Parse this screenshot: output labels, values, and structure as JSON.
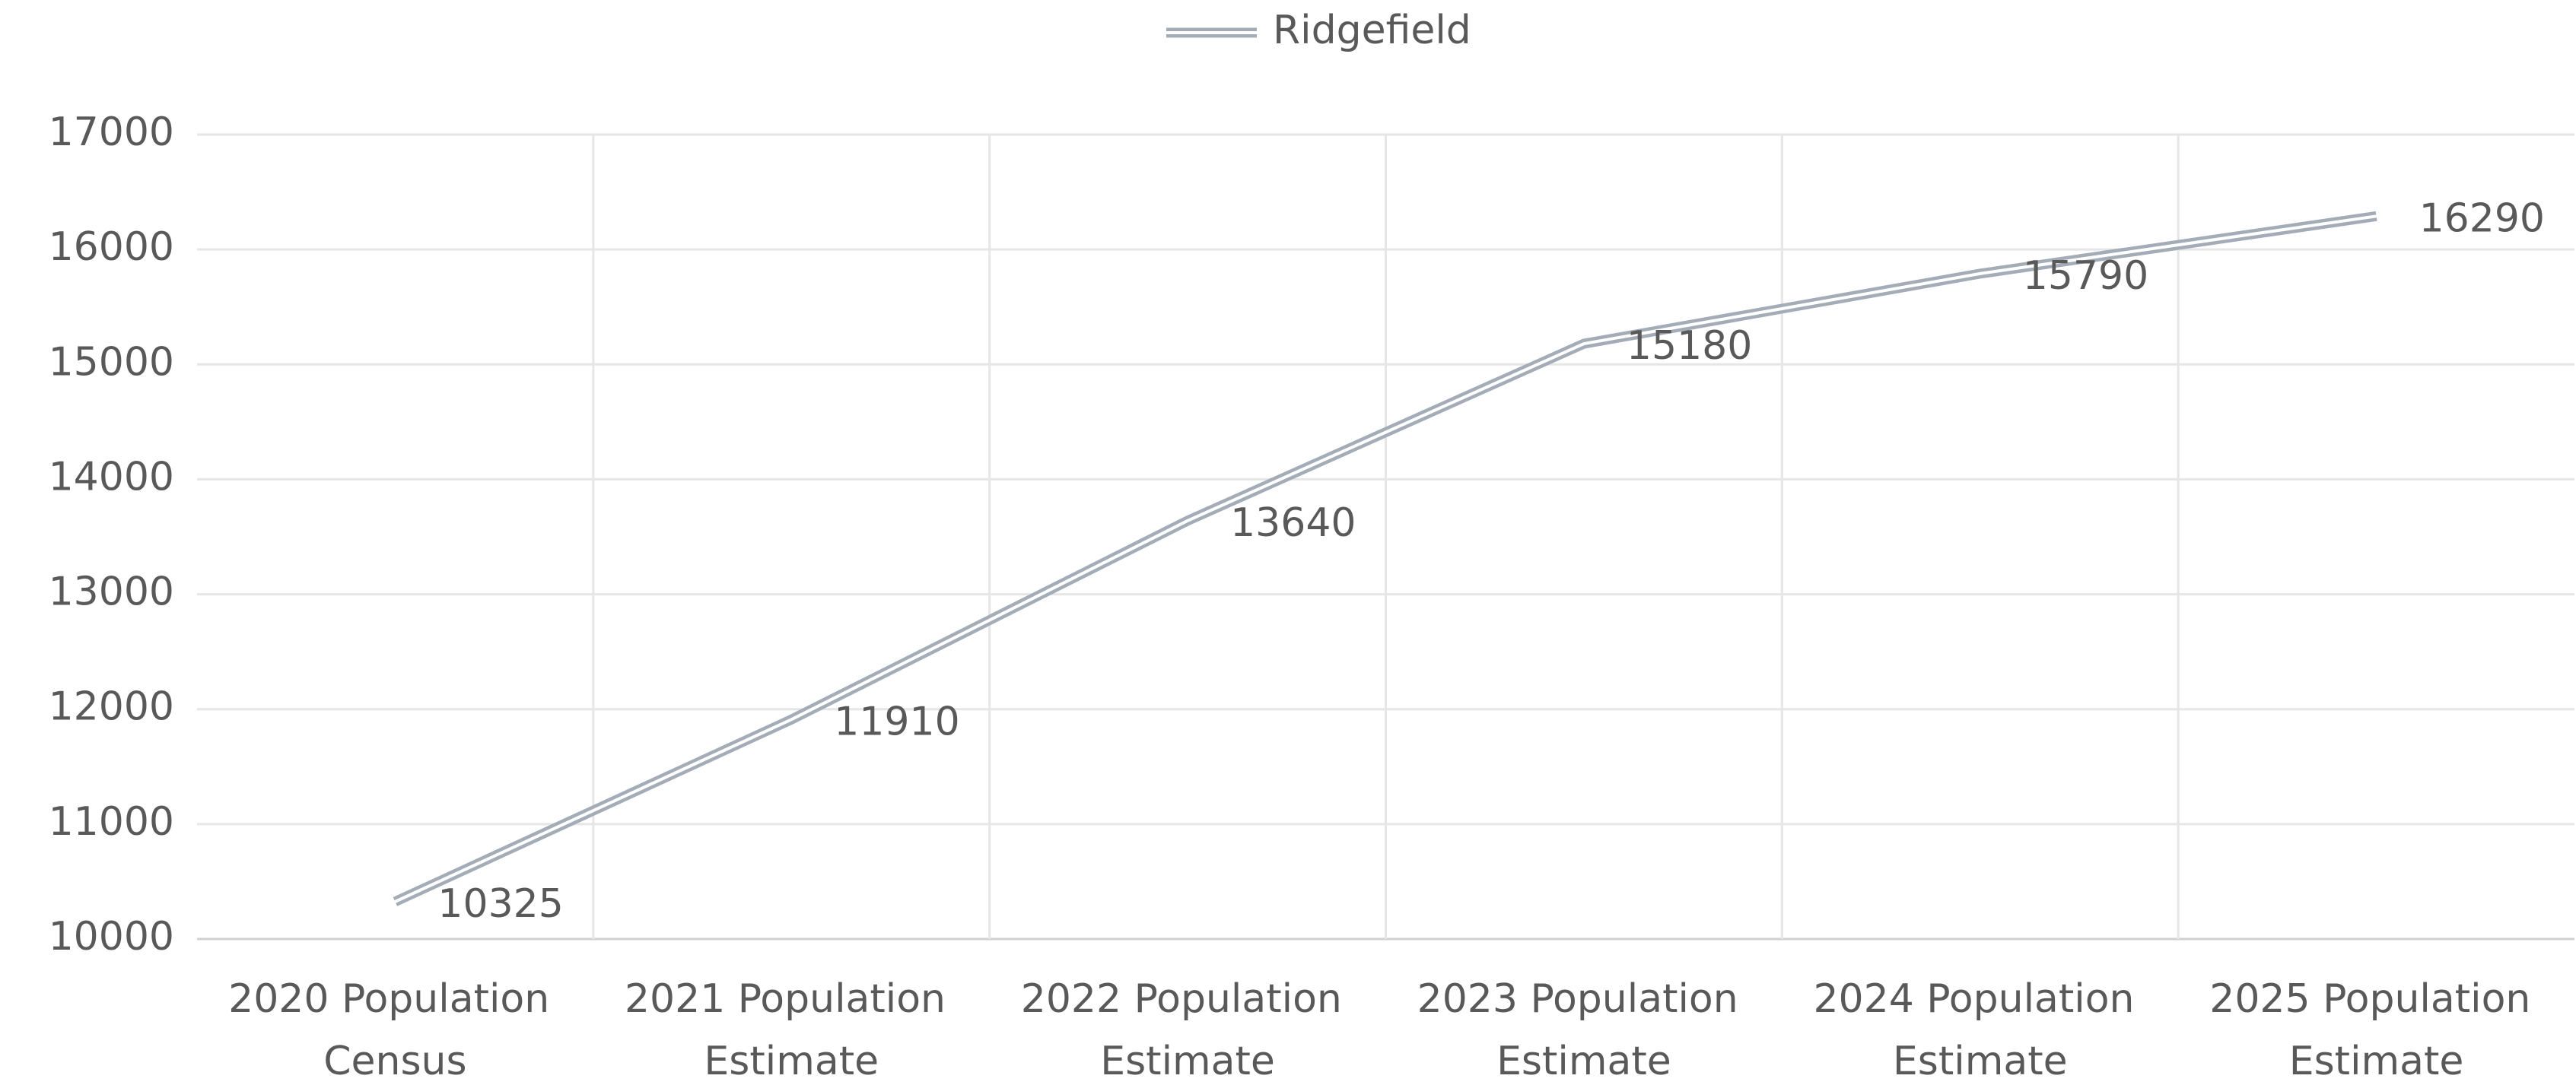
{
  "chart_data": {
    "type": "line",
    "categories": [
      "2020 Population Census",
      "2021 Population Estimate",
      "2022 Population Estimate",
      "2023 Population Estimate",
      "2024 Population Estimate",
      "2025 Population Estimate"
    ],
    "series": [
      {
        "name": "Ridgefield",
        "color": "#a3acb7",
        "values": [
          10325,
          11910,
          13640,
          15180,
          15790,
          16290
        ]
      }
    ],
    "ylim": [
      10000,
      17000
    ],
    "yticks": [
      10000,
      11000,
      12000,
      13000,
      14000,
      15000,
      16000,
      17000
    ],
    "grid": true,
    "legend": "top",
    "data_labels": true
  }
}
